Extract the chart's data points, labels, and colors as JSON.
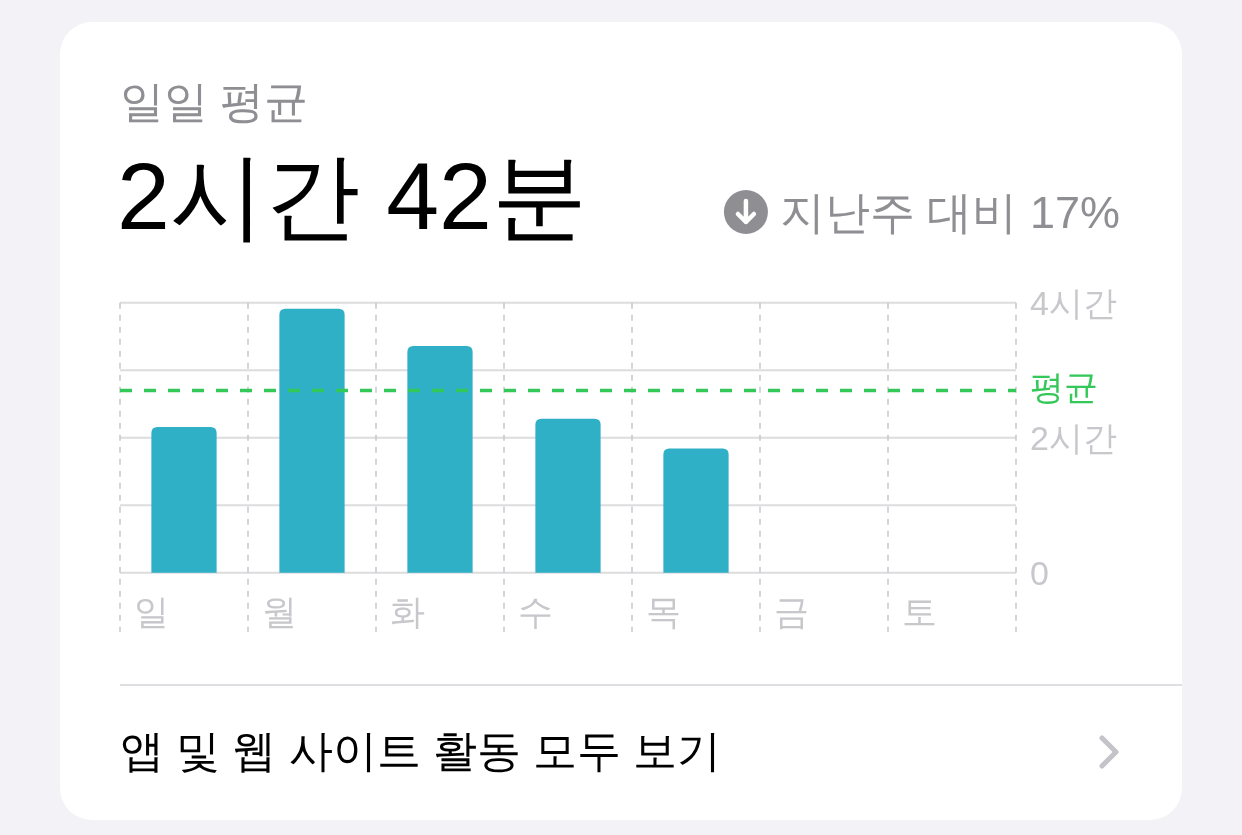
{
  "chart_data": {
    "type": "bar",
    "title": "일일 평균",
    "subtitle": "2시간 42분",
    "annotations": [
      "지난주 대비 17%",
      "앱 및 웹 사이트 활동 모두 보기"
    ],
    "categories": [
      "일",
      "월",
      "화",
      "수",
      "목",
      "금",
      "토"
    ],
    "values": [
      2.16,
      3.91,
      3.36,
      2.28,
      1.84,
      null,
      null
    ],
    "color": "#30b0c7",
    "ylim": [
      0,
      4
    ],
    "yticks": [
      0,
      {
        "value": 1,
        "label": null
      },
      {
        "value": 2,
        "label": "2시간"
      },
      {
        "value": 3,
        "label": null
      },
      {
        "value": 4,
        "label": "4시간"
      }
    ],
    "grid": true,
    "ref_lines": [
      {
        "axis": "y",
        "value": 2.7,
        "label": "평균",
        "color": "#34c759",
        "line_style": "dashed"
      }
    ]
  }
}
